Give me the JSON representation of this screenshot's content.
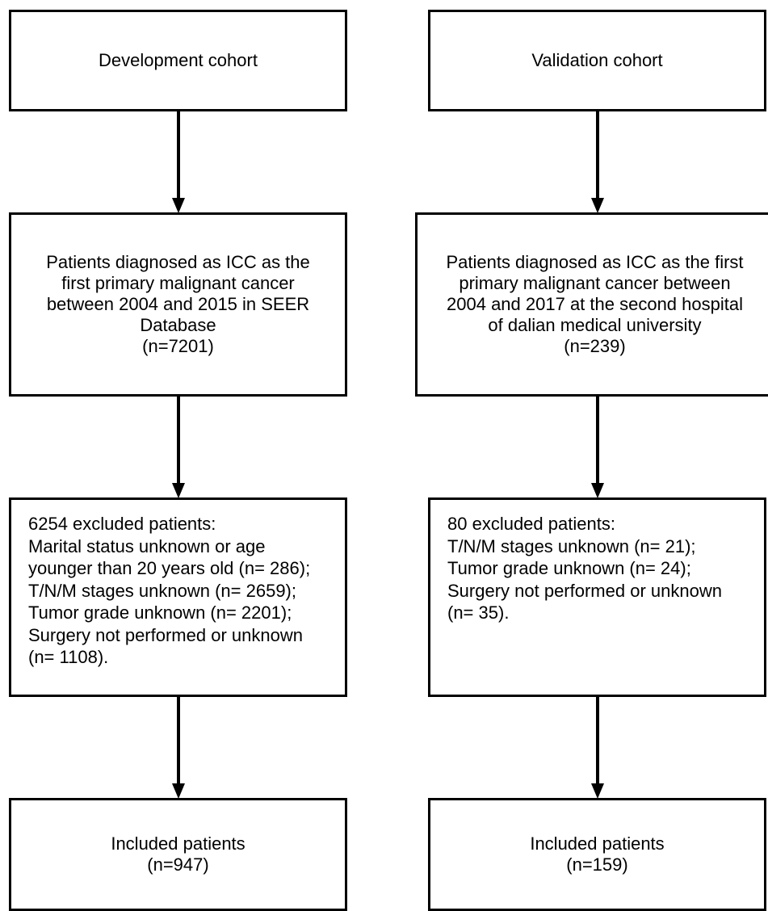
{
  "development": {
    "header": "Development cohort",
    "diagnosed": {
      "lines": [
        "Patients diagnosed as ICC as the",
        "first primary malignant cancer",
        "between 2004 and 2015 in SEER",
        "Database",
        "(n=7201)"
      ]
    },
    "excluded": {
      "lines": [
        "6254 excluded patients:",
        "Marital status unknown or age",
        "younger than 20 years old (n= 286);",
        "T/N/M stages unknown (n= 2659);",
        "Tumor grade unknown (n= 2201);",
        "Surgery not performed or unknown",
        "(n= 1108)."
      ]
    },
    "included": {
      "lines": [
        "Included patients",
        "(n=947)"
      ]
    }
  },
  "validation": {
    "header": "Validation cohort",
    "diagnosed": {
      "lines": [
        "Patients diagnosed as ICC as the first",
        "primary malignant cancer between",
        "2004 and 2017 at the second hospital",
        "of dalian medical university",
        "(n=239)"
      ]
    },
    "excluded": {
      "lines": [
        "80 excluded patients:",
        "T/N/M stages unknown (n= 21);",
        "Tumor grade unknown (n= 24);",
        "Surgery not performed or unknown",
        "(n= 35)."
      ]
    },
    "included": {
      "lines": [
        "Included patients",
        "(n=159)"
      ]
    }
  }
}
